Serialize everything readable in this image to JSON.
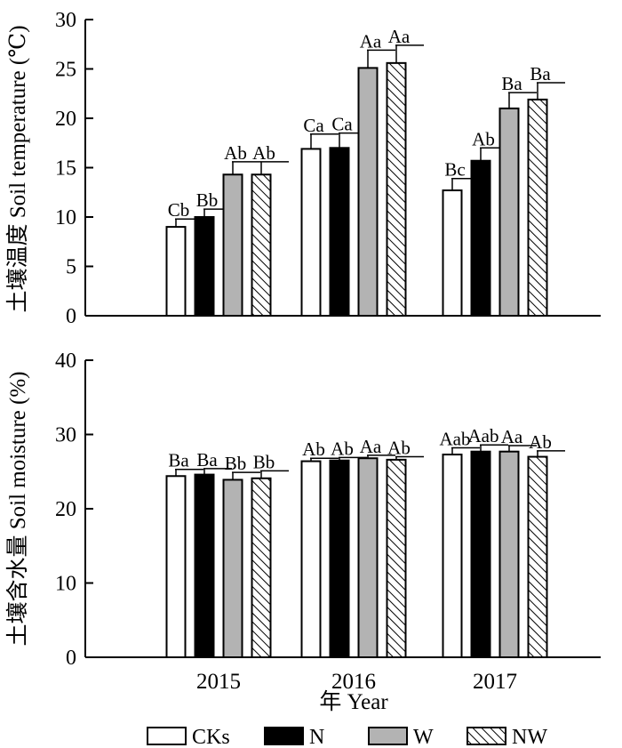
{
  "chart_data": [
    {
      "type": "bar",
      "ylabel": "土壤温度 Soil temperature (℃)",
      "ylim": [
        0,
        30
      ],
      "yticks": [
        0,
        5,
        10,
        15,
        20,
        25,
        30
      ],
      "categories": [
        "2015",
        "2016",
        "2017"
      ],
      "series": [
        {
          "name": "CKs",
          "values": [
            9.0,
            16.9,
            12.7
          ],
          "errors": [
            0.8,
            1.5,
            1.2
          ],
          "labels": [
            "Cb",
            "Ca",
            "Bc"
          ]
        },
        {
          "name": "N",
          "values": [
            10.0,
            17.0,
            15.7
          ],
          "errors": [
            0.8,
            1.5,
            1.3
          ],
          "labels": [
            "Bb",
            "Ca",
            "Ab"
          ]
        },
        {
          "name": "W",
          "values": [
            14.3,
            25.1,
            21.0
          ],
          "errors": [
            1.3,
            1.8,
            1.6
          ],
          "labels": [
            "Ab",
            "Aa",
            "Ba"
          ]
        },
        {
          "name": "NW",
          "values": [
            14.3,
            25.6,
            21.9
          ],
          "errors": [
            1.3,
            1.8,
            1.7
          ],
          "labels": [
            "Ab",
            "Aa",
            "Ba"
          ]
        }
      ]
    },
    {
      "type": "bar",
      "ylabel": "土壤含水量 Soil moisture (%)",
      "ylim": [
        0,
        40
      ],
      "yticks": [
        0,
        10,
        20,
        30,
        40
      ],
      "categories": [
        "2015",
        "2016",
        "2017"
      ],
      "series": [
        {
          "name": "CKs",
          "values": [
            24.4,
            26.4,
            27.3
          ],
          "errors": [
            0.9,
            0.4,
            0.9
          ],
          "labels": [
            "Ba",
            "Ab",
            "Aab"
          ]
        },
        {
          "name": "N",
          "values": [
            24.6,
            26.5,
            27.7
          ],
          "errors": [
            0.8,
            0.4,
            0.9
          ],
          "labels": [
            "Ba",
            "Ab",
            "Aab"
          ]
        },
        {
          "name": "W",
          "values": [
            23.9,
            26.8,
            27.7
          ],
          "errors": [
            1.0,
            0.4,
            0.8
          ],
          "labels": [
            "Bb",
            "Aa",
            "Aa"
          ]
        },
        {
          "name": "NW",
          "values": [
            24.1,
            26.6,
            27.0
          ],
          "errors": [
            1.0,
            0.4,
            0.8
          ],
          "labels": [
            "Bb",
            "Ab",
            "Ab"
          ]
        }
      ]
    }
  ],
  "xlabel": "年 Year",
  "legend": {
    "placement": "bottom",
    "items": [
      {
        "name": "CKs",
        "fill": "#ffffff"
      },
      {
        "name": "N",
        "fill": "#000000"
      },
      {
        "name": "W",
        "fill": "#b3b3b3"
      },
      {
        "name": "NW",
        "fill": "hatch"
      }
    ]
  }
}
